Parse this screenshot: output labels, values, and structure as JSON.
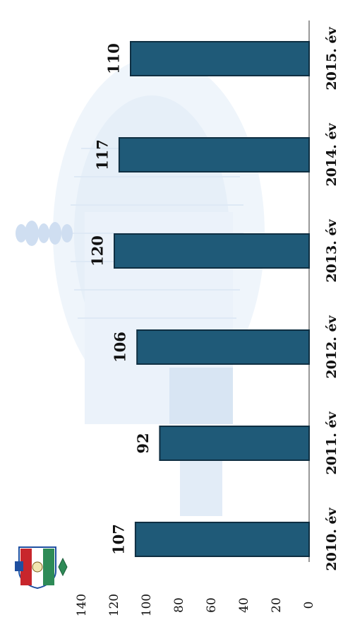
{
  "chart_data": {
    "type": "bar",
    "orientation": "vertical (image rotated 90° counter-clockwise)",
    "categories": [
      "2010. év",
      "2011. év",
      "2012. év",
      "2013. év",
      "2014. év",
      "2015. év"
    ],
    "values": [
      107,
      92,
      106,
      120,
      117,
      110
    ],
    "data_labels": [
      "107",
      "92",
      "106",
      "120",
      "117",
      "110"
    ],
    "yticks": [
      "0",
      "20",
      "40",
      "60",
      "80",
      "100",
      "120",
      "140"
    ],
    "ylim": [
      0,
      140
    ],
    "grid": false,
    "bar_color": "#1f5a78",
    "bar_edge_color": "#0f2f42",
    "title": "",
    "xlabel": "",
    "ylabel": ""
  },
  "background": {
    "watermark": "faded-stadium-photo",
    "watermark_color": "#d6e6f5"
  },
  "logo": {
    "name": "club-crest-logo",
    "colors": [
      "#c8262c",
      "#2e8b57",
      "#1f4fa0",
      "#ffffff"
    ]
  }
}
